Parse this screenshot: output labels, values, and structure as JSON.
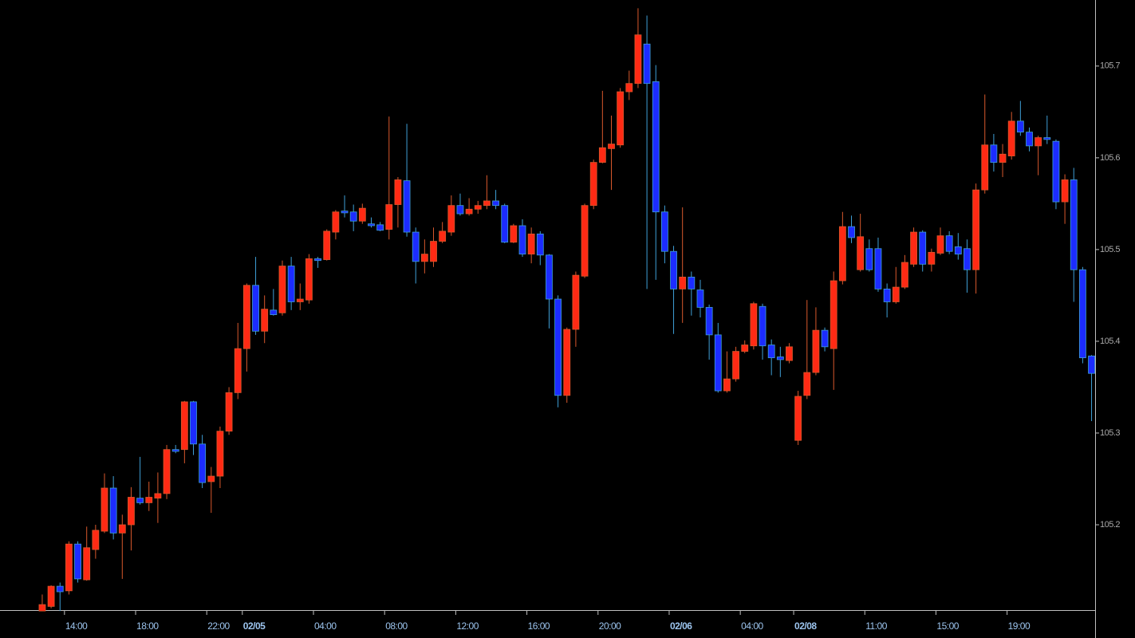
{
  "chart_data": {
    "type": "candlestick",
    "up_color": "#ff2a14",
    "down_color": "#1c2cff",
    "up_wick_color": "#d8582c",
    "down_wick_color": "#3f9fd6",
    "x": [
      0,
      1,
      2,
      3,
      4,
      5,
      6,
      7,
      8,
      9,
      10,
      11,
      12,
      13,
      14,
      15,
      16,
      17,
      18,
      19,
      20,
      21,
      22,
      23,
      24,
      25,
      26,
      27,
      28,
      29,
      30,
      31,
      32,
      33,
      34,
      35,
      36,
      37,
      38,
      39,
      40,
      41,
      42,
      43,
      44,
      45,
      46,
      47,
      48,
      49,
      50,
      51,
      52,
      53,
      54,
      55,
      56,
      57,
      58,
      59,
      60,
      61,
      62,
      63,
      64,
      65,
      66,
      67,
      68,
      69,
      70,
      71,
      72,
      73,
      74,
      75,
      76,
      77,
      78,
      79,
      80,
      81,
      82,
      83,
      84,
      85,
      86,
      87,
      88,
      89,
      90,
      91,
      92,
      93,
      94,
      95,
      96,
      97,
      98,
      99,
      100,
      101,
      102,
      103,
      104,
      105,
      106,
      107,
      108,
      109,
      110,
      111,
      112,
      113,
      114,
      115,
      116,
      117,
      118
    ],
    "open": [
      105.106,
      105.111,
      105.133,
      105.128,
      105.179,
      105.14,
      105.173,
      105.193,
      105.24,
      105.191,
      105.2,
      105.229,
      105.224,
      105.229,
      105.234,
      105.282,
      105.282,
      105.334,
      105.288,
      105.247,
      105.253,
      105.302,
      105.344,
      105.392,
      105.461,
      105.411,
      105.434,
      105.431,
      105.482,
      105.443,
      105.445,
      105.49,
      105.489,
      105.519,
      105.542,
      105.541,
      105.531,
      105.528,
      105.527,
      105.522,
      105.549,
      105.575,
      105.519,
      105.487,
      105.487,
      105.509,
      105.519,
      105.548,
      105.539,
      105.544,
      105.548,
      105.553,
      105.548,
      105.508,
      105.526,
      105.495,
      105.517,
      105.494,
      105.446,
      105.341,
      105.413,
      105.471,
      105.548,
      105.595,
      105.61,
      105.614,
      105.672,
      105.681,
      105.724,
      105.683,
      105.541,
      105.498,
      105.457,
      105.47,
      105.456,
      105.437,
      105.407,
      105.346,
      105.359,
      105.389,
      105.395,
      105.438,
      105.396,
      105.383,
      105.379,
      105.292,
      105.341,
      105.366,
      105.412,
      105.392,
      105.466,
      105.525,
      105.478,
      105.501,
      105.501,
      105.457,
      105.443,
      105.459,
      105.484,
      105.519,
      105.484,
      105.496,
      105.515,
      105.503,
      105.501,
      105.478,
      105.565,
      105.614,
      105.595,
      105.602,
      105.64,
      105.628,
      105.613,
      105.622,
      105.618,
      105.552,
      105.576,
      105.478,
      105.384
    ],
    "high": [
      105.124,
      105.134,
      105.137,
      105.182,
      105.182,
      105.198,
      105.2,
      105.256,
      105.253,
      105.211,
      105.241,
      105.274,
      105.247,
      105.257,
      105.287,
      105.287,
      105.335,
      105.335,
      105.298,
      105.263,
      105.307,
      105.35,
      105.42,
      105.463,
      105.492,
      105.45,
      105.457,
      105.488,
      105.492,
      105.463,
      105.495,
      105.492,
      105.522,
      105.543,
      105.559,
      105.549,
      105.55,
      105.535,
      105.53,
      105.645,
      105.579,
      105.637,
      105.524,
      105.511,
      105.524,
      105.53,
      105.559,
      105.561,
      105.556,
      105.553,
      105.581,
      105.565,
      105.55,
      105.528,
      105.533,
      105.524,
      105.52,
      105.495,
      105.45,
      105.415,
      105.476,
      105.55,
      105.598,
      105.673,
      105.646,
      105.676,
      105.695,
      105.763,
      105.755,
      105.701,
      105.548,
      105.504,
      105.546,
      105.476,
      105.467,
      105.44,
      105.42,
      105.389,
      105.394,
      105.401,
      105.443,
      105.441,
      105.402,
      105.394,
      105.398,
      105.346,
      105.445,
      105.437,
      105.415,
      105.476,
      105.541,
      105.537,
      105.539,
      105.511,
      105.513,
      105.463,
      105.481,
      105.494,
      105.524,
      105.521,
      105.501,
      105.524,
      105.52,
      105.518,
      105.511,
      105.572,
      105.669,
      105.626,
      105.615,
      105.65,
      105.662,
      105.633,
      105.624,
      105.646,
      105.62,
      105.582,
      105.589,
      105.481,
      105.385
    ],
    "low": [
      105.106,
      105.109,
      105.106,
      105.124,
      105.137,
      105.139,
      105.163,
      105.191,
      105.184,
      105.141,
      105.172,
      105.222,
      105.215,
      105.202,
      105.228,
      105.278,
      105.267,
      105.276,
      105.24,
      105.213,
      105.24,
      105.298,
      105.337,
      105.367,
      105.407,
      105.398,
      105.428,
      105.428,
      105.434,
      105.434,
      105.441,
      105.48,
      105.488,
      105.511,
      105.535,
      105.52,
      105.528,
      105.524,
      105.52,
      105.511,
      105.524,
      105.514,
      105.463,
      105.474,
      105.481,
      105.507,
      105.515,
      105.537,
      105.537,
      105.539,
      105.544,
      105.544,
      105.507,
      105.507,
      105.492,
      105.485,
      105.483,
      105.414,
      105.328,
      105.333,
      105.394,
      105.469,
      105.544,
      105.594,
      105.565,
      105.611,
      105.663,
      105.676,
      105.457,
      105.467,
      105.485,
      105.408,
      105.42,
      105.428,
      105.426,
      105.38,
      105.344,
      105.344,
      105.356,
      105.387,
      105.391,
      105.38,
      105.363,
      105.361,
      105.376,
      105.287,
      105.337,
      105.363,
      105.389,
      105.347,
      105.462,
      105.507,
      105.476,
      105.476,
      105.454,
      105.426,
      105.441,
      105.457,
      105.481,
      105.476,
      105.476,
      105.494,
      105.495,
      105.489,
      105.453,
      105.452,
      105.561,
      105.585,
      105.579,
      105.598,
      105.624,
      105.607,
      105.581,
      105.615,
      105.544,
      105.528,
      105.443,
      105.376,
      105.313
    ],
    "close": [
      105.113,
      105.133,
      105.127,
      105.179,
      105.141,
      105.175,
      105.194,
      105.24,
      105.191,
      105.2,
      105.23,
      105.224,
      105.23,
      105.234,
      105.282,
      105.28,
      105.334,
      105.288,
      105.246,
      105.253,
      105.302,
      105.344,
      105.392,
      105.461,
      105.411,
      105.435,
      105.429,
      105.482,
      105.443,
      105.446,
      105.49,
      105.488,
      105.52,
      105.541,
      105.54,
      105.531,
      105.545,
      105.526,
      105.521,
      105.549,
      105.576,
      105.519,
      105.487,
      105.495,
      105.509,
      105.52,
      105.548,
      105.539,
      105.544,
      105.548,
      105.553,
      105.548,
      105.508,
      105.526,
      105.495,
      105.517,
      105.494,
      105.446,
      105.341,
      105.413,
      105.472,
      105.548,
      105.595,
      105.611,
      105.615,
      105.672,
      105.681,
      105.734,
      105.681,
      105.541,
      105.498,
      105.457,
      105.47,
      105.457,
      105.437,
      105.407,
      105.346,
      105.359,
      105.389,
      105.396,
      105.441,
      105.395,
      105.382,
      105.38,
      105.394,
      105.34,
      105.366,
      105.412,
      105.394,
      105.466,
      105.525,
      105.513,
      105.514,
      105.478,
      105.457,
      105.443,
      105.459,
      105.486,
      105.519,
      105.484,
      105.497,
      105.515,
      105.498,
      105.495,
      105.478,
      105.565,
      105.614,
      105.595,
      105.604,
      105.64,
      105.628,
      105.613,
      105.622,
      105.62,
      105.552,
      105.576,
      105.478,
      105.382,
      105.365
    ],
    "xlim": [
      -4.75,
      118.4
    ],
    "xticks": [
      {
        "value": 2.5,
        "label": "14:00"
      },
      {
        "value": 10.5,
        "label": "18:00"
      },
      {
        "value": 18.5,
        "label": "22:00"
      },
      {
        "value": 22.5,
        "label": "02/05"
      },
      {
        "value": 30.5,
        "label": "04:00"
      },
      {
        "value": 38.5,
        "label": "08:00"
      },
      {
        "value": 46.5,
        "label": "12:00"
      },
      {
        "value": 54.5,
        "label": "16:00"
      },
      {
        "value": 62.5,
        "label": "20:00"
      },
      {
        "value": 70.5,
        "label": "02/06"
      },
      {
        "value": 78.5,
        "label": "04:00"
      },
      {
        "value": 84.5,
        "label": "02/08"
      },
      {
        "value": 92.5,
        "label": "11:00"
      },
      {
        "value": 100.5,
        "label": "15:00"
      },
      {
        "value": 108.5,
        "label": "19:00"
      }
    ],
    "ylim": [
      105.107,
      105.772
    ],
    "yticks": [
      105.2,
      105.3,
      105.4,
      105.5,
      105.6,
      105.7
    ],
    "grid": false
  }
}
